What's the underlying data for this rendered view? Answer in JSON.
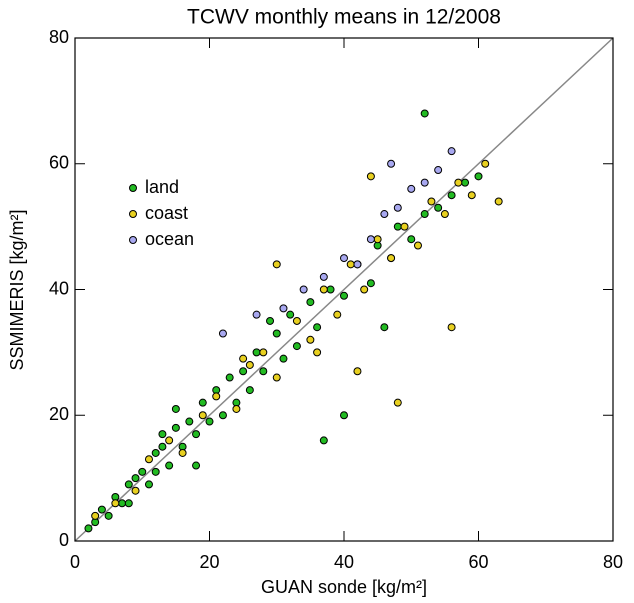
{
  "chart_data": {
    "type": "scatter",
    "title": "TCWV monthly means in 12/2008",
    "x_label": "GUAN sonde [kg/m²]",
    "y_label": "SSMIMERIS [kg/m²]",
    "xlim": [
      0,
      80
    ],
    "ylim": [
      0,
      80
    ],
    "xticks": [
      0,
      20,
      40,
      60,
      80
    ],
    "yticks": [
      0,
      20,
      40,
      60,
      80
    ],
    "legend": "upper left",
    "series": [
      {
        "name": "land",
        "color": "#22bb22",
        "x": [
          2,
          3,
          4,
          5,
          6,
          7,
          8,
          8,
          9,
          10,
          11,
          12,
          12,
          13,
          14,
          15,
          16,
          17,
          18,
          19,
          20,
          21,
          22,
          23,
          24,
          25,
          26,
          27,
          28,
          30,
          31,
          32,
          33,
          35,
          36,
          38,
          40,
          42,
          44,
          45,
          47,
          48,
          50,
          52,
          54,
          56,
          58,
          60,
          13,
          18,
          52,
          40,
          46,
          37,
          29,
          15
        ],
        "values": [
          2,
          3,
          5,
          4,
          7,
          6,
          9,
          6,
          10,
          11,
          9,
          14,
          11,
          15,
          12,
          18,
          15,
          19,
          17,
          22,
          19,
          24,
          20,
          26,
          22,
          27,
          24,
          30,
          27,
          33,
          29,
          36,
          31,
          38,
          34,
          40,
          39,
          44,
          41,
          47,
          45,
          50,
          48,
          52,
          53,
          55,
          57,
          58,
          17,
          12,
          68,
          20,
          34,
          16,
          35,
          21
        ]
      },
      {
        "name": "coast",
        "color": "#e8d020",
        "x": [
          3,
          6,
          9,
          11,
          14,
          16,
          19,
          21,
          24,
          26,
          28,
          30,
          33,
          35,
          37,
          39,
          41,
          43,
          45,
          47,
          49,
          51,
          53,
          55,
          57,
          59,
          61,
          63,
          48,
          42,
          30,
          36,
          56,
          44,
          25
        ],
        "values": [
          4,
          6,
          8,
          13,
          16,
          14,
          20,
          23,
          21,
          28,
          30,
          26,
          35,
          32,
          40,
          36,
          44,
          40,
          48,
          45,
          50,
          47,
          54,
          52,
          57,
          55,
          60,
          54,
          22,
          27,
          44,
          30,
          34,
          58,
          29
        ]
      },
      {
        "name": "ocean",
        "color": "#a8a8f0",
        "x": [
          22,
          27,
          31,
          34,
          37,
          40,
          42,
          44,
          46,
          48,
          50,
          52,
          54,
          56,
          47
        ],
        "values": [
          33,
          36,
          37,
          40,
          42,
          45,
          44,
          48,
          52,
          53,
          56,
          57,
          59,
          62,
          60
        ]
      }
    ]
  }
}
